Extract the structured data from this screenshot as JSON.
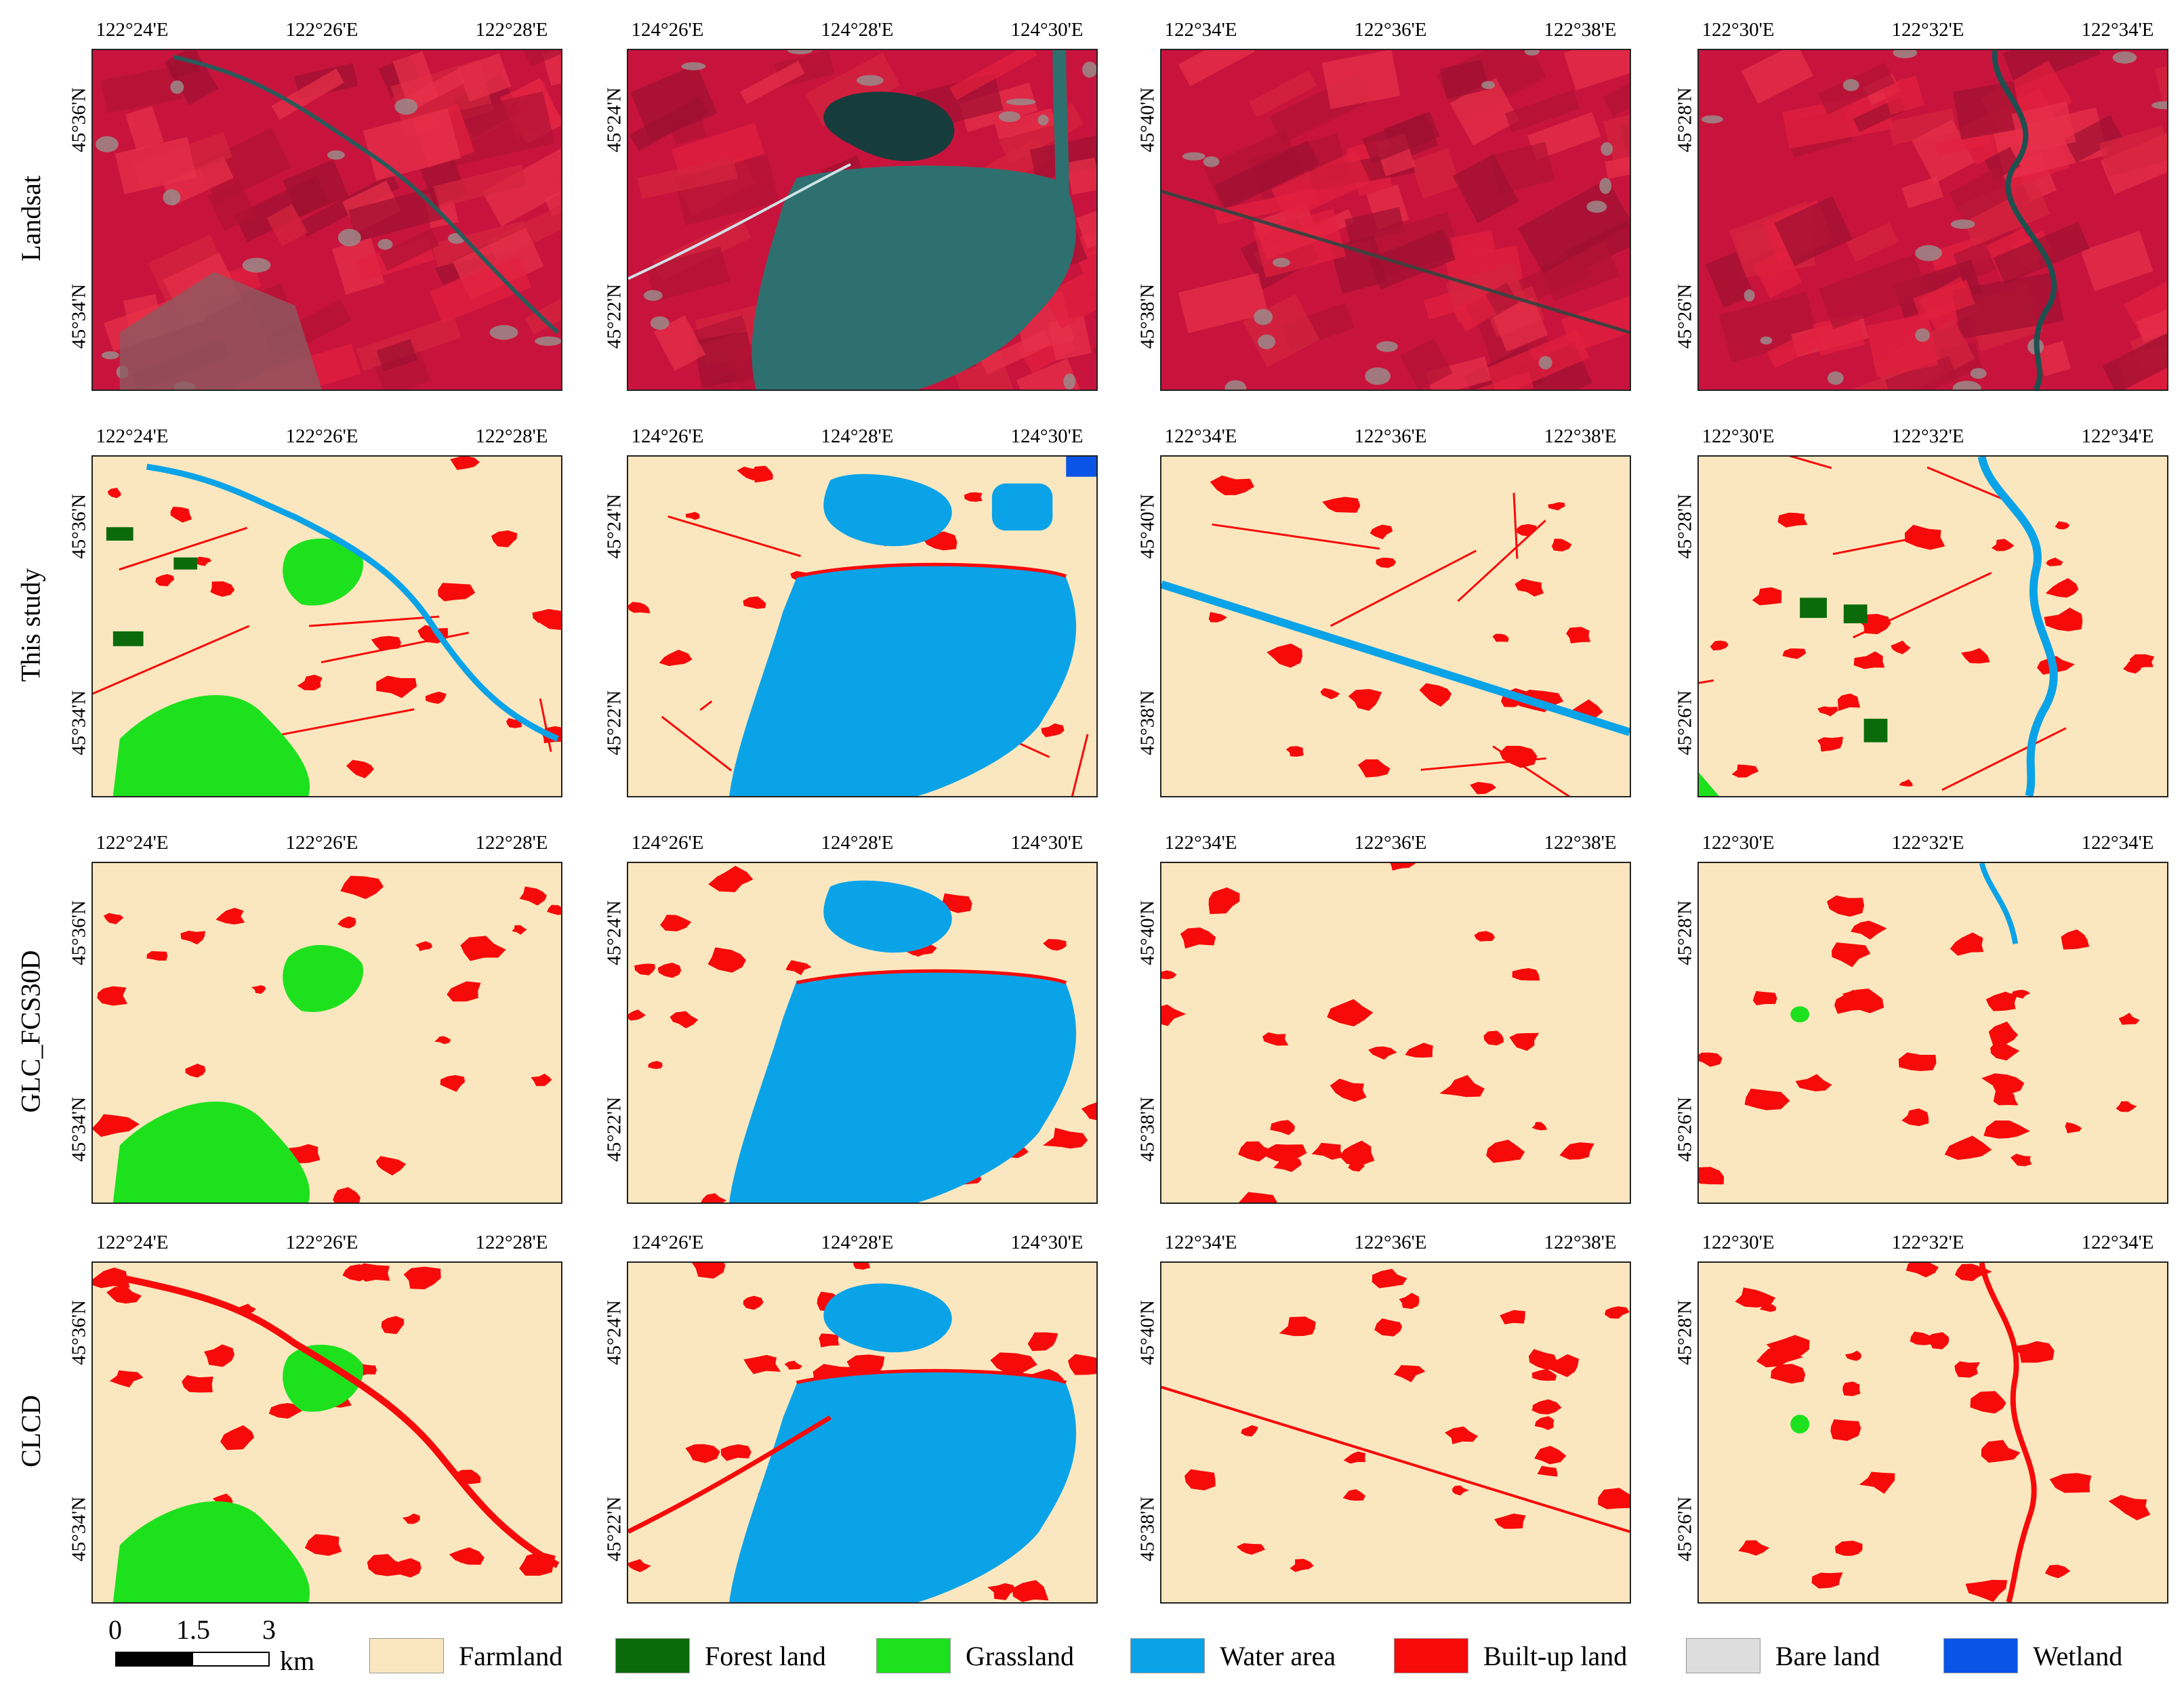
{
  "rows": [
    {
      "label": "Landsat",
      "kind": "landsat"
    },
    {
      "label": "This study",
      "kind": "thisstudy"
    },
    {
      "label": "GLC_FCS30D",
      "kind": "glc"
    },
    {
      "label": "CLCD",
      "kind": "clcd"
    }
  ],
  "columns": [
    {
      "lon_ticks": [
        "122°24'E",
        "122°26'E",
        "122°28'E"
      ],
      "lat_ticks": [
        "45°36'N",
        "45°34'N"
      ]
    },
    {
      "lon_ticks": [
        "124°26'E",
        "124°28'E",
        "124°30'E"
      ],
      "lat_ticks": [
        "45°24'N",
        "45°22'N"
      ]
    },
    {
      "lon_ticks": [
        "122°34'E",
        "122°36'E",
        "122°38'E"
      ],
      "lat_ticks": [
        "45°40'N",
        "45°38'N"
      ]
    },
    {
      "lon_ticks": [
        "122°30'E",
        "122°32'E",
        "122°34'E"
      ],
      "lat_ticks": [
        "45°28'N",
        "45°26'N"
      ]
    }
  ],
  "scale_bar": {
    "ticks": [
      "0",
      "1.5",
      "3"
    ],
    "unit": "km"
  },
  "legend": [
    {
      "label": "Farmland",
      "color": "#FBE7BF"
    },
    {
      "label": "Forest land",
      "color": "#0B6B0B"
    },
    {
      "label": "Grassland",
      "color": "#1DE11D"
    },
    {
      "label": "Water area",
      "color": "#0BA3E8"
    },
    {
      "label": "Built-up land",
      "color": "#F70A0A"
    },
    {
      "label": "Bare land",
      "color": "#DDDDDD"
    },
    {
      "label": "Wetland",
      "color": "#0A55E8"
    }
  ]
}
